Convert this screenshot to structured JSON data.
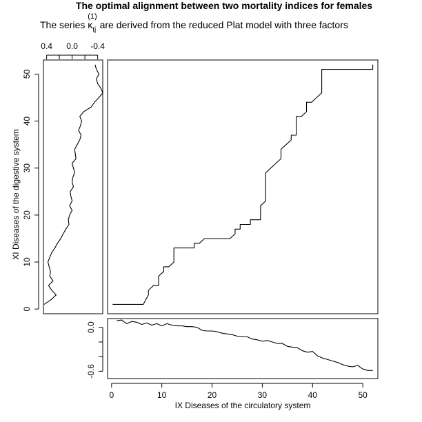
{
  "title": "The optimal alignment between two mortality indices for females",
  "subtitle": {
    "before": "The series ",
    "kappa": "κ",
    "subscript": "tj",
    "superscript": "(1)",
    "after": " are derived from the reduced Plat model with three factors"
  },
  "colors": {
    "line": "#000000",
    "background": "#ffffff"
  },
  "chart_data": [
    {
      "panel": "alignment-path",
      "type": "line",
      "xlabel": "IX Diseases of the circulatory system",
      "ylabel": "XI Diseases of the digestive system",
      "xlim": [
        0,
        53
      ],
      "ylim": [
        -1,
        53
      ],
      "xticks": [
        0,
        10,
        20,
        30,
        40,
        50
      ],
      "yticks": [
        0,
        10,
        20,
        30,
        40,
        50
      ],
      "grid": false,
      "x": [
        1,
        7,
        8,
        8,
        9,
        10,
        10,
        11,
        11,
        12,
        13,
        13,
        17,
        17,
        18,
        19,
        20,
        21,
        22,
        23,
        24,
        25,
        25,
        26,
        26,
        27,
        28,
        28,
        30,
        30,
        31,
        31,
        32,
        33,
        33,
        34,
        34,
        35,
        36,
        36,
        37,
        37,
        38,
        39,
        39,
        40,
        41,
        42,
        42,
        52,
        52
      ],
      "y": [
        1,
        1,
        3,
        4,
        5,
        5,
        7,
        8,
        9,
        9,
        10,
        13,
        13,
        14,
        14,
        15,
        15,
        15,
        15,
        15,
        15,
        16,
        17,
        17,
        18,
        18,
        18,
        19,
        19,
        22,
        23,
        29,
        30,
        31,
        31,
        32,
        34,
        35,
        36,
        37,
        37,
        41,
        41,
        42,
        44,
        44,
        45,
        46,
        51,
        51,
        52
      ]
    },
    {
      "panel": "y-series",
      "type": "line",
      "ylim": [
        -1,
        53
      ],
      "xlim": [
        0.45,
        -0.48
      ],
      "xticks": [
        0.4,
        0.0,
        -0.4
      ],
      "xtick_labels": [
        "0.4",
        "0.0",
        "-0.4"
      ],
      "grid": false,
      "t": [
        1,
        2,
        3,
        4,
        5,
        6,
        7,
        8,
        9,
        10,
        11,
        12,
        13,
        14,
        15,
        16,
        17,
        18,
        19,
        20,
        21,
        22,
        23,
        24,
        25,
        26,
        27,
        28,
        29,
        30,
        31,
        32,
        33,
        34,
        35,
        36,
        37,
        38,
        39,
        40,
        41,
        42,
        43,
        44,
        45,
        46,
        47,
        48,
        49,
        50,
        51,
        52
      ],
      "values": [
        0.44,
        0.33,
        0.25,
        0.32,
        0.37,
        0.3,
        0.35,
        0.34,
        0.36,
        0.38,
        0.35,
        0.32,
        0.27,
        0.23,
        0.18,
        0.14,
        0.1,
        0.05,
        0.06,
        0.04,
        0.0,
        0.04,
        0.0,
        0.02,
        0.03,
        -0.02,
        0.0,
        -0.01,
        -0.04,
        -0.02,
        0.0,
        -0.06,
        -0.05,
        -0.04,
        -0.08,
        -0.12,
        -0.14,
        -0.1,
        -0.13,
        -0.15,
        -0.12,
        -0.18,
        -0.3,
        -0.35,
        -0.42,
        -0.48,
        -0.45,
        -0.4,
        -0.38,
        -0.42,
        -0.38,
        -0.36
      ]
    },
    {
      "panel": "x-series",
      "type": "line",
      "xlim": [
        -0.8,
        53
      ],
      "ylim": [
        -0.7,
        0.12
      ],
      "xticks": [
        0,
        10,
        20,
        30,
        40,
        50
      ],
      "yticks": [
        0.0,
        -0.6
      ],
      "ytick_labels": [
        "0.0",
        "-0.6"
      ],
      "grid": false,
      "t": [
        1,
        2,
        3,
        4,
        5,
        6,
        7,
        8,
        9,
        10,
        11,
        12,
        13,
        14,
        15,
        16,
        17,
        18,
        19,
        20,
        21,
        22,
        23,
        24,
        25,
        26,
        27,
        28,
        29,
        30,
        31,
        32,
        33,
        34,
        35,
        36,
        37,
        38,
        39,
        40,
        41,
        42,
        43,
        44,
        45,
        46,
        47,
        48,
        49,
        50,
        51,
        52
      ],
      "values": [
        0.09,
        0.1,
        0.05,
        0.08,
        0.07,
        0.04,
        0.06,
        0.03,
        0.05,
        0.02,
        0.05,
        0.03,
        0.02,
        0.02,
        0.01,
        0.01,
        0.0,
        -0.04,
        -0.05,
        -0.05,
        -0.06,
        -0.08,
        -0.09,
        -0.1,
        -0.12,
        -0.13,
        -0.13,
        -0.16,
        -0.17,
        -0.19,
        -0.18,
        -0.2,
        -0.22,
        -0.22,
        -0.26,
        -0.27,
        -0.28,
        -0.32,
        -0.34,
        -0.33,
        -0.39,
        -0.42,
        -0.44,
        -0.46,
        -0.48,
        -0.51,
        -0.53,
        -0.54,
        -0.52,
        -0.57,
        -0.59,
        -0.59
      ]
    }
  ]
}
